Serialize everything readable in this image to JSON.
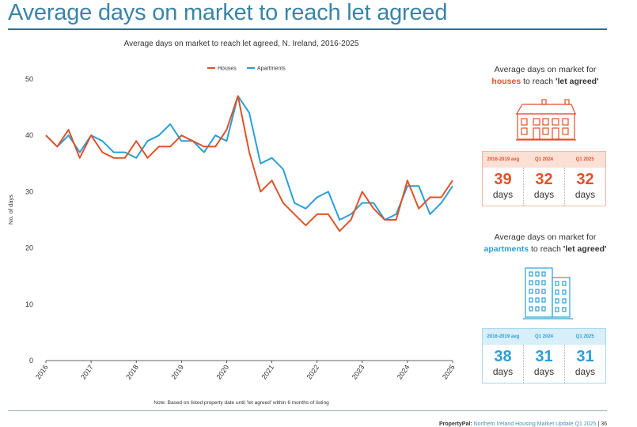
{
  "page": {
    "title": "Average days on market to reach let agreed",
    "footer_brand": "PropertyPal:",
    "footer_text": "Northern Ireland Housing Market Update Q1 2025",
    "footer_sep": "|",
    "footer_page": "36"
  },
  "colors": {
    "houses": "#e0522a",
    "apartments": "#2a9fd6",
    "title": "#3a84a6"
  },
  "chart_data": {
    "type": "line",
    "title": "Average days on market to reach let agreed, N. Ireland, 2016-2025",
    "xlabel": "",
    "ylabel": "No. of days",
    "note": "Note: Based on listed property date until 'let agreed' within 6 months of listing",
    "ylim": [
      0,
      50
    ],
    "yticks": [
      0,
      10,
      20,
      30,
      40,
      50
    ],
    "xtick_labels": [
      "2016",
      "2017",
      "2018",
      "2019",
      "2020",
      "2021",
      "2022",
      "2023",
      "2024",
      "2025"
    ],
    "x_start": "2016 Q1",
    "grid": false,
    "legend": "top-center",
    "series": [
      {
        "name": "Houses",
        "color": "#e0522a",
        "values": [
          40,
          38,
          41,
          36,
          40,
          37,
          36,
          36,
          39,
          36,
          38,
          38,
          40,
          39,
          38,
          38,
          41,
          47,
          37,
          30,
          32,
          28,
          26,
          24,
          26,
          26,
          23,
          25,
          30,
          27,
          25,
          25,
          32,
          27,
          29,
          29,
          32
        ]
      },
      {
        "name": "Apartments",
        "color": "#2a9fd6",
        "values": [
          40,
          38,
          40,
          37,
          40,
          39,
          37,
          37,
          36,
          39,
          40,
          42,
          39,
          39,
          37,
          40,
          39,
          47,
          44,
          35,
          36,
          34,
          28,
          27,
          29,
          30,
          25,
          26,
          28,
          28,
          25,
          26,
          31,
          31,
          26,
          28,
          31
        ]
      }
    ]
  },
  "cards": {
    "houses": {
      "heading_pre": "Average days on market for",
      "keyword": "houses",
      "heading_mid": "to reach",
      "heading_bold": "'let agreed'",
      "icon": "house-icon",
      "headers": [
        "2016-2019 avg",
        "Q1 2024",
        "Q1 2025"
      ],
      "values": [
        "39",
        "32",
        "32"
      ],
      "unit": "days"
    },
    "apartments": {
      "heading_pre": "Average days on market for",
      "keyword": "apartments",
      "heading_mid": "to reach",
      "heading_bold": "'let agreed'",
      "icon": "apartment-building-icon",
      "headers": [
        "2016-2019 avg",
        "Q1 2024",
        "Q1 2025"
      ],
      "values": [
        "38",
        "31",
        "31"
      ],
      "unit": "days"
    }
  }
}
